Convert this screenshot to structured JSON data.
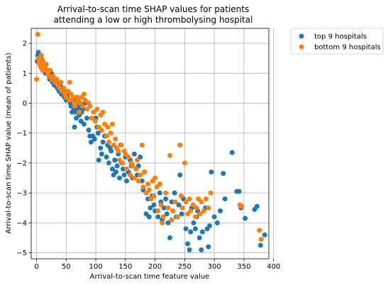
{
  "chart_data": {
    "type": "scatter",
    "title_lines": [
      "Arrival-to-scan time SHAP values for patients",
      "attending a low or high thrombolysing hospital"
    ],
    "xlabel": "Arrival-to-scan time feature value",
    "ylabel": "Arrival-to-scan time SHAP value (mean of patients)",
    "xlim": [
      -9,
      392
    ],
    "ylim": [
      -5.2,
      2.5
    ],
    "xticks": [
      0,
      50,
      100,
      150,
      200,
      250,
      300,
      350,
      400
    ],
    "yticks": [
      2,
      1,
      0,
      -1,
      -2,
      -3,
      -4,
      -5
    ],
    "grid": true,
    "legend_position": "outside-right",
    "series": [
      {
        "name": "top 9 hospitals",
        "color": "#1f77b4",
        "points": [
          [
            1,
            1.4
          ],
          [
            2,
            1.6
          ],
          [
            3,
            1.7
          ],
          [
            4,
            1.5
          ],
          [
            5,
            1.6
          ],
          [
            6,
            1.4
          ],
          [
            7,
            1.3
          ],
          [
            8,
            1.5
          ],
          [
            9,
            1.2
          ],
          [
            10,
            1.3
          ],
          [
            12,
            1.1
          ],
          [
            14,
            1.2
          ],
          [
            15,
            1.0
          ],
          [
            16,
            1.3
          ],
          [
            18,
            1.1
          ],
          [
            20,
            1.0
          ],
          [
            22,
            0.8
          ],
          [
            24,
            0.9
          ],
          [
            25,
            1.0
          ],
          [
            27,
            0.7
          ],
          [
            28,
            0.9
          ],
          [
            30,
            0.6
          ],
          [
            32,
            0.8
          ],
          [
            33,
            0.7
          ],
          [
            35,
            0.5
          ],
          [
            37,
            0.6
          ],
          [
            38,
            0.4
          ],
          [
            40,
            0.6
          ],
          [
            42,
            0.3
          ],
          [
            44,
            0.5
          ],
          [
            45,
            0.4
          ],
          [
            47,
            0.2
          ],
          [
            48,
            0.3
          ],
          [
            50,
            0.1
          ],
          [
            52,
            0.2
          ],
          [
            55,
            0.3
          ],
          [
            57,
            0.0
          ],
          [
            58,
            -0.1
          ],
          [
            60,
            -0.3
          ],
          [
            62,
            0.1
          ],
          [
            63,
            -0.2
          ],
          [
            64,
            -0.8
          ],
          [
            65,
            -0.3
          ],
          [
            67,
            -0.5
          ],
          [
            68,
            0.0
          ],
          [
            70,
            -0.2
          ],
          [
            72,
            -0.4
          ],
          [
            73,
            -0.1
          ],
          [
            75,
            -0.6
          ],
          [
            76,
            -0.3
          ],
          [
            78,
            -0.2
          ],
          [
            80,
            -0.7
          ],
          [
            82,
            0.0
          ],
          [
            85,
            -0.5
          ],
          [
            88,
            -0.9
          ],
          [
            90,
            -1.1
          ],
          [
            92,
            -1.3
          ],
          [
            95,
            -1.1
          ],
          [
            98,
            -1.2
          ],
          [
            100,
            -0.5
          ],
          [
            102,
            -0.8
          ],
          [
            104,
            -1.0
          ],
          [
            105,
            -1.9
          ],
          [
            108,
            -1.5
          ],
          [
            110,
            -1.7
          ],
          [
            112,
            -1.3
          ],
          [
            115,
            -1.1
          ],
          [
            118,
            -1.8
          ],
          [
            120,
            -1.4
          ],
          [
            122,
            -2.0
          ],
          [
            124,
            -1.5
          ],
          [
            126,
            -1.6
          ],
          [
            128,
            -2.2
          ],
          [
            130,
            -2.4
          ],
          [
            132,
            -1.9
          ],
          [
            134,
            -2.3
          ],
          [
            136,
            -2.1
          ],
          [
            138,
            -1.7
          ],
          [
            140,
            -2.5
          ],
          [
            142,
            -1.4
          ],
          [
            144,
            -2.0
          ],
          [
            146,
            -2.2
          ],
          [
            148,
            -2.4
          ],
          [
            150,
            -1.8
          ],
          [
            152,
            -2.6
          ],
          [
            155,
            -2.3
          ],
          [
            158,
            -1.9
          ],
          [
            160,
            -2.1
          ],
          [
            162,
            -2.5
          ],
          [
            165,
            -1.7
          ],
          [
            168,
            -2.2
          ],
          [
            170,
            -2.4
          ],
          [
            172,
            -2.1
          ],
          [
            175,
            -1.8
          ],
          [
            178,
            -2.6
          ],
          [
            180,
            -2.9
          ],
          [
            182,
            -2.3
          ],
          [
            185,
            -3.7
          ],
          [
            188,
            -3.2
          ],
          [
            190,
            -3.8
          ],
          [
            192,
            -3.5
          ],
          [
            195,
            -3.1
          ],
          [
            198,
            -3.4
          ],
          [
            200,
            -3.6
          ],
          [
            205,
            -3.8
          ],
          [
            208,
            -3.0
          ],
          [
            210,
            -3.3
          ],
          [
            212,
            -3.9
          ],
          [
            215,
            -3.5
          ],
          [
            218,
            -3.2
          ],
          [
            220,
            -3.7
          ],
          [
            222,
            -4.0
          ],
          [
            225,
            -4.5
          ],
          [
            228,
            -3.3
          ],
          [
            230,
            -3.6
          ],
          [
            233,
            -3.0
          ],
          [
            236,
            -3.8
          ],
          [
            240,
            -3.4
          ],
          [
            242,
            -2.4
          ],
          [
            245,
            -3.7
          ],
          [
            248,
            -3.2
          ],
          [
            252,
            -4.2
          ],
          [
            255,
            -4.7
          ],
          [
            258,
            -4.9
          ],
          [
            260,
            -4.3
          ],
          [
            262,
            -3.5
          ],
          [
            265,
            -4.0
          ],
          [
            268,
            -4.2
          ],
          [
            270,
            -3.8
          ],
          [
            272,
            -3.6
          ],
          [
            275,
            -4.5
          ],
          [
            278,
            -4.9
          ],
          [
            280,
            -4.3
          ],
          [
            285,
            -3.5
          ],
          [
            288,
            -4.2
          ],
          [
            290,
            -4.8
          ],
          [
            292,
            -4.1
          ],
          [
            295,
            -2.3
          ],
          [
            300,
            -3.8
          ],
          [
            305,
            -4.0
          ],
          [
            310,
            -3.6
          ],
          [
            315,
            -2.35
          ],
          [
            318,
            -3.2
          ],
          [
            330,
            -1.65
          ],
          [
            338,
            -2.95
          ],
          [
            342,
            -2.95
          ],
          [
            345,
            -3.5
          ],
          [
            352,
            -3.85
          ],
          [
            368,
            -3.55
          ],
          [
            372,
            -3.45
          ],
          [
            378,
            -4.75
          ],
          [
            385,
            -4.4
          ]
        ]
      },
      {
        "name": "bottom 9 hospitals",
        "color": "#ff7f0e",
        "points": [
          [
            0,
            0.8
          ],
          [
            2,
            2.3
          ],
          [
            3,
            1.5
          ],
          [
            4,
            1.4
          ],
          [
            5,
            1.3
          ],
          [
            6,
            1.5
          ],
          [
            7,
            1.2
          ],
          [
            8,
            1.6
          ],
          [
            9,
            1.3
          ],
          [
            10,
            1.1
          ],
          [
            11,
            1.4
          ],
          [
            13,
            1.2
          ],
          [
            15,
            1.3
          ],
          [
            17,
            1.1
          ],
          [
            19,
            1.0
          ],
          [
            21,
            0.9
          ],
          [
            23,
            1.1
          ],
          [
            26,
            0.8
          ],
          [
            28,
            0.9
          ],
          [
            31,
            0.7
          ],
          [
            34,
            0.8
          ],
          [
            36,
            0.6
          ],
          [
            39,
            0.5
          ],
          [
            41,
            0.7
          ],
          [
            43,
            0.4
          ],
          [
            46,
            0.5
          ],
          [
            48,
            0.3
          ],
          [
            50,
            0.2
          ],
          [
            53,
            0.4
          ],
          [
            55,
            0.1
          ],
          [
            56,
            0.7
          ],
          [
            58,
            0.3
          ],
          [
            60,
            0.1
          ],
          [
            62,
            0.2
          ],
          [
            64,
            -0.1
          ],
          [
            66,
            0.0
          ],
          [
            68,
            0.2
          ],
          [
            70,
            0.1
          ],
          [
            72,
            -0.3
          ],
          [
            74,
            0.0
          ],
          [
            76,
            0.2
          ],
          [
            78,
            -0.1
          ],
          [
            80,
            0.3
          ],
          [
            82,
            0.1
          ],
          [
            85,
            -0.2
          ],
          [
            88,
            0.0
          ],
          [
            90,
            -0.1
          ],
          [
            93,
            -0.5
          ],
          [
            96,
            -0.3
          ],
          [
            99,
            -0.6
          ],
          [
            102,
            -0.2
          ],
          [
            105,
            -0.8
          ],
          [
            108,
            -0.4
          ],
          [
            110,
            -0.9
          ],
          [
            112,
            -0.3
          ],
          [
            115,
            -0.7
          ],
          [
            118,
            -1.1
          ],
          [
            120,
            -0.8
          ],
          [
            122,
            -1.3
          ],
          [
            125,
            -1.0
          ],
          [
            128,
            -0.7
          ],
          [
            130,
            -1.4
          ],
          [
            133,
            -1.2
          ],
          [
            135,
            -1.5
          ],
          [
            138,
            -1.6
          ],
          [
            140,
            -1.9
          ],
          [
            143,
            -1.4
          ],
          [
            145,
            -2.0
          ],
          [
            148,
            -1.6
          ],
          [
            150,
            -1.7
          ],
          [
            152,
            -2.2
          ],
          [
            155,
            -1.8
          ],
          [
            158,
            -2.4
          ],
          [
            160,
            -2.0
          ],
          [
            162,
            -2.1
          ],
          [
            165,
            -2.5
          ],
          [
            168,
            -2.2
          ],
          [
            170,
            -1.9
          ],
          [
            172,
            -2.6
          ],
          [
            175,
            -2.4
          ],
          [
            178,
            -1.4
          ],
          [
            180,
            -2.8
          ],
          [
            182,
            -2.3
          ],
          [
            185,
            -3.0
          ],
          [
            188,
            -2.7
          ],
          [
            190,
            -2.9
          ],
          [
            193,
            -3.2
          ],
          [
            196,
            -2.6
          ],
          [
            198,
            -3.1
          ],
          [
            200,
            -2.5
          ],
          [
            203,
            -2.8
          ],
          [
            205,
            -3.6
          ],
          [
            208,
            -2.7
          ],
          [
            210,
            -3.4
          ],
          [
            212,
            -4.0
          ],
          [
            214,
            -3.8
          ],
          [
            218,
            -3.0
          ],
          [
            222,
            -3.5
          ],
          [
            225,
            -1.75
          ],
          [
            228,
            -3.9
          ],
          [
            230,
            -3.6
          ],
          [
            234,
            -3.3
          ],
          [
            238,
            -3.8
          ],
          [
            242,
            -1.4
          ],
          [
            244,
            -3.1
          ],
          [
            246,
            -3.5
          ],
          [
            250,
            -2.0
          ],
          [
            252,
            -3.3
          ],
          [
            255,
            -3.7
          ],
          [
            258,
            -3.2
          ],
          [
            260,
            -3.6
          ],
          [
            264,
            -3.4
          ],
          [
            268,
            -3.8
          ],
          [
            270,
            -3.5
          ],
          [
            273,
            -3.2
          ],
          [
            276,
            -3.7
          ],
          [
            278,
            -3.3
          ],
          [
            282,
            -3.6
          ],
          [
            286,
            -3.2
          ],
          [
            290,
            -3.5
          ],
          [
            294,
            -3.0
          ],
          [
            343,
            -3.4
          ],
          [
            346,
            -3.45
          ],
          [
            376,
            -4.25
          ],
          [
            379,
            -4.55
          ]
        ]
      }
    ]
  }
}
